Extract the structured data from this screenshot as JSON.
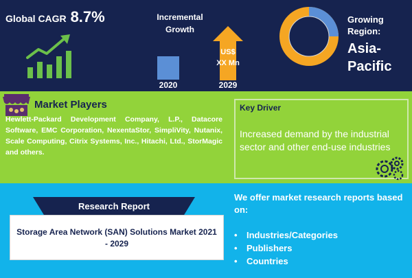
{
  "top": {
    "cagr_label": "Global CAGR",
    "cagr_value": "8.7%",
    "incremental_growth": [
      "Incremental",
      "Growth"
    ],
    "year_start": "2020",
    "year_end": "2029",
    "bar_value": [
      "US$",
      "XX Mn"
    ],
    "region_label": [
      "Growing",
      "Region:"
    ],
    "region_value": [
      "Asia-",
      "Pacific"
    ]
  },
  "players": {
    "title": "Market Players",
    "text": "Hewlett-Packard Development Company, L.P., Datacore Software, EMC Corporation, NexentaStor, SimpliVity, Nutanix, Scale Computing, Citrix Systems, Inc., Hitachi, Ltd., StorMagic and others."
  },
  "driver": {
    "title": "Key Driver",
    "text": "Increased demand by the industrial sector and other end-use industries"
  },
  "report": {
    "banner": "Research Report",
    "title": "Storage Area Network (SAN) Solutions Market 2021 - 2029"
  },
  "offer": {
    "title": "We offer market research reports based on:",
    "items": [
      "Industries/Categories",
      "Publishers",
      "Countries"
    ]
  },
  "colors": {
    "navy": "#16234f",
    "green": "#92d33a",
    "cyan": "#12b3ea",
    "orange": "#f5a623",
    "donut_blue": "#5b8fd6"
  },
  "icons": {
    "growth": "growth-chart-icon",
    "players": "shop-awning-icon",
    "gears": "gears-icon"
  }
}
